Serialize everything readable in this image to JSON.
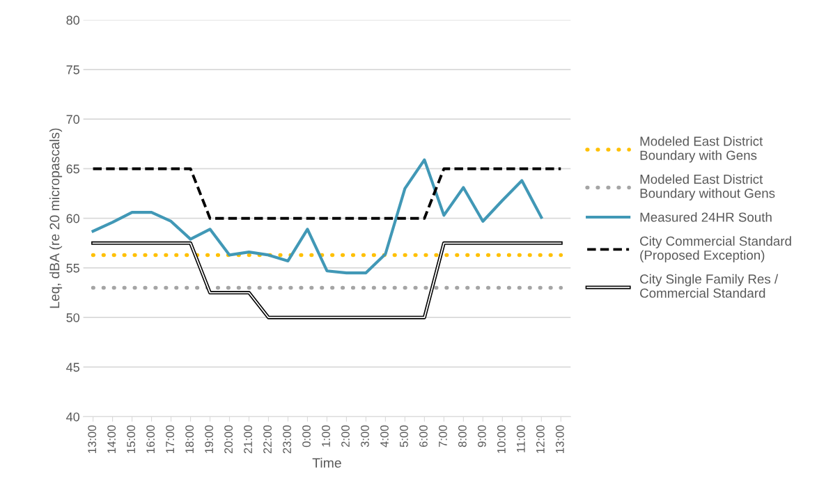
{
  "chart_data": {
    "type": "line",
    "xlabel": "Time",
    "ylabel": "Leq, dBA (re 20 micropascals)",
    "categories": [
      "13:00",
      "14:00",
      "15:00",
      "16:00",
      "17:00",
      "18:00",
      "19:00",
      "20:00",
      "21:00",
      "22:00",
      "23:00",
      "0:00",
      "1:00",
      "2:00",
      "3:00",
      "4:00",
      "5:00",
      "6:00",
      "7:00",
      "8:00",
      "9:00",
      "10:00",
      "11:00",
      "12:00",
      "13:00"
    ],
    "ylim": [
      40,
      80
    ],
    "yticks": [
      40,
      45,
      50,
      55,
      60,
      65,
      70,
      75,
      80
    ],
    "grid": "y",
    "legend": "right",
    "series": [
      {
        "name": "Modeled East District Boundary with Gens",
        "color": "#ffc000",
        "line_style": "dotted",
        "values": [
          56.3,
          56.3,
          56.3,
          56.3,
          56.3,
          56.3,
          56.3,
          56.3,
          56.3,
          56.3,
          56.3,
          56.3,
          56.3,
          56.3,
          56.3,
          56.3,
          56.3,
          56.3,
          56.3,
          56.3,
          56.3,
          56.3,
          56.3,
          56.3,
          56.3
        ]
      },
      {
        "name": "Modeled East District Boundary without Gens",
        "color": "#a5a5a5",
        "line_style": "dotted",
        "values": [
          53,
          53,
          53,
          53,
          53,
          53,
          53,
          53,
          53,
          53,
          53,
          53,
          53,
          53,
          53,
          53,
          53,
          53,
          53,
          53,
          53,
          53,
          53,
          53,
          53
        ]
      },
      {
        "name": "Measured 24HR South",
        "color": "#4198b6",
        "line_style": "solid",
        "values": [
          58.7,
          59.6,
          60.6,
          60.6,
          59.7,
          57.9,
          58.9,
          56.3,
          56.6,
          56.3,
          55.7,
          58.9,
          54.7,
          54.5,
          54.5,
          56.4,
          63.0,
          65.9,
          60.3,
          63.1,
          59.7,
          61.8,
          63.8,
          60.1,
          null
        ]
      },
      {
        "name": "City Commercial Standard (Proposed Exception)",
        "color": "#000000",
        "line_style": "dashed",
        "values": [
          65,
          65,
          65,
          65,
          65,
          65,
          60,
          60,
          60,
          60,
          60,
          60,
          60,
          60,
          60,
          60,
          60,
          60,
          65,
          65,
          65,
          65,
          65,
          65,
          65
        ]
      },
      {
        "name": "City Single Family Res / Commercial Standard",
        "color": "#000000",
        "line_style": "solid",
        "values": [
          57.5,
          57.5,
          57.5,
          57.5,
          57.5,
          57.5,
          52.5,
          52.5,
          52.5,
          50,
          50,
          50,
          50,
          50,
          50,
          50,
          50,
          50,
          57.5,
          57.5,
          57.5,
          57.5,
          57.5,
          57.5,
          57.5
        ]
      }
    ]
  }
}
